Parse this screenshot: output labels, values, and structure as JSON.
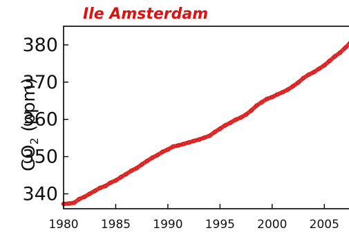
{
  "chart_data": {
    "type": "scatter",
    "title": "Ile Amsterdam",
    "ylabel": "CO₂ (ppm)",
    "xlabel": "",
    "xlim": [
      1980,
      2007.5
    ],
    "ylim": [
      336,
      385
    ],
    "xticks": [
      1980,
      1985,
      1990,
      1995,
      2000,
      2005
    ],
    "yticks": [
      340,
      350,
      360,
      370,
      380
    ],
    "grid": false,
    "legend": "none",
    "colors": {
      "title": "#e01010",
      "series": "#d81010"
    },
    "series": [
      {
        "x": [
          1980.0,
          1980.5,
          1981.0,
          1981.5,
          1982.0,
          1982.5,
          1983.0,
          1983.5,
          1984.0,
          1984.5,
          1985.0,
          1985.5,
          1986.0,
          1986.5,
          1987.0,
          1987.5,
          1988.0,
          1988.5,
          1989.0,
          1989.5,
          1990.0,
          1990.5,
          1991.0,
          1991.5,
          1992.0,
          1992.5,
          1993.0,
          1993.5,
          1994.0,
          1994.5,
          1995.0,
          1995.5,
          1996.0,
          1996.5,
          1997.0,
          1997.5,
          1998.0,
          1998.5,
          1999.0,
          1999.5,
          2000.0,
          2000.5,
          2001.0,
          2001.5,
          2002.0,
          2002.5,
          2003.0,
          2003.5,
          2004.0,
          2004.5,
          2005.0,
          2005.5,
          2006.0,
          2006.5,
          2007.0,
          2007.5
        ],
        "y": [
          337.3,
          337.4,
          337.6,
          338.6,
          339.2,
          340.0,
          340.8,
          341.6,
          342.1,
          343.0,
          343.6,
          344.5,
          345.3,
          346.2,
          346.9,
          347.9,
          348.8,
          349.7,
          350.4,
          351.3,
          351.9,
          352.7,
          353.0,
          353.4,
          353.8,
          354.2,
          354.6,
          355.1,
          355.6,
          356.6,
          357.5,
          358.4,
          359.1,
          359.9,
          360.5,
          361.3,
          362.4,
          363.7,
          364.6,
          365.5,
          366.0,
          366.7,
          367.3,
          368.0,
          368.9,
          369.9,
          371.1,
          372.0,
          372.7,
          373.6,
          374.5,
          375.7,
          376.9,
          377.9,
          379.2,
          380.6
        ]
      }
    ]
  }
}
